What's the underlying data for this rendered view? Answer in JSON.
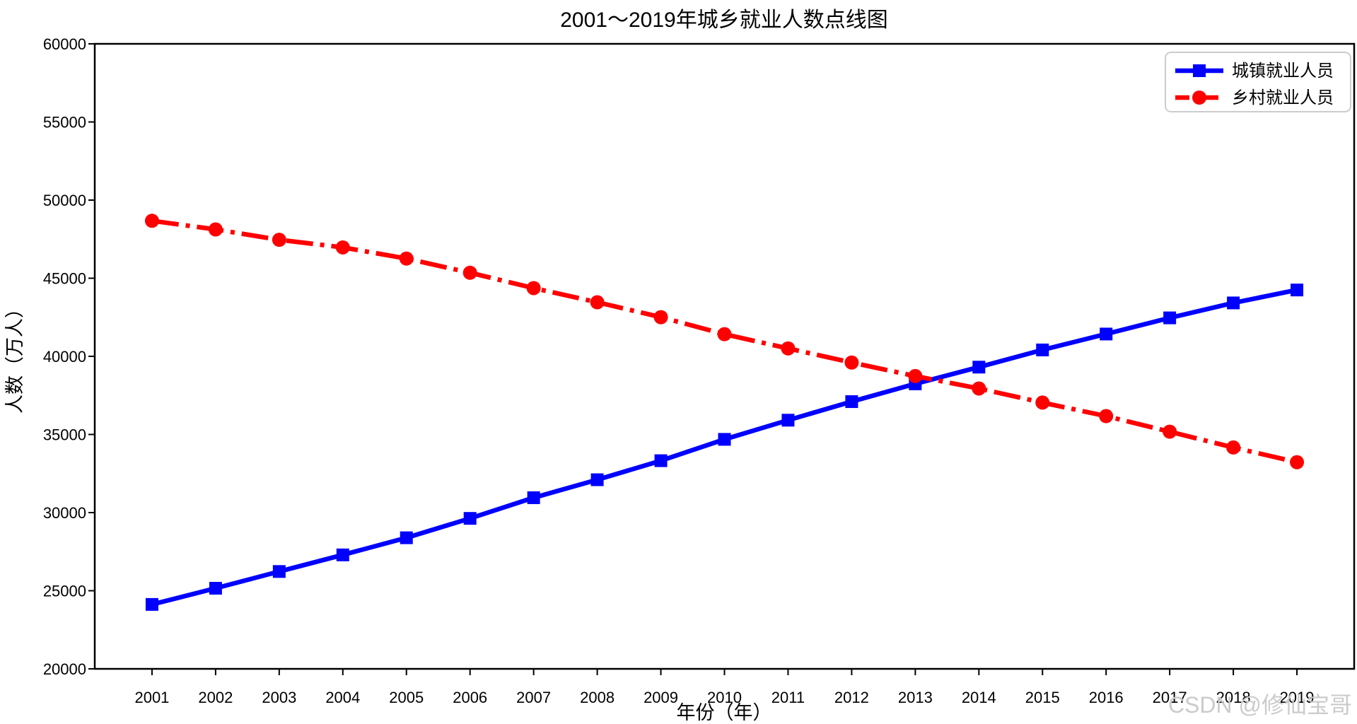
{
  "figure": {
    "title": "2001～2019年城乡就业人数点线图",
    "watermark": "CSDN @修仙宝哥"
  },
  "chart_data": {
    "type": "line",
    "title": "2001～2019年城乡就业人数点线图",
    "xlabel": "年份（年）",
    "ylabel": "人数（万人）",
    "x": [
      2001,
      2002,
      2003,
      2004,
      2005,
      2006,
      2007,
      2008,
      2009,
      2010,
      2011,
      2012,
      2013,
      2014,
      2015,
      2016,
      2017,
      2018,
      2019
    ],
    "xlim": [
      2000.1,
      2019.9
    ],
    "ylim": [
      20000,
      60000
    ],
    "yticks": [
      20000,
      25000,
      30000,
      35000,
      40000,
      45000,
      50000,
      55000,
      60000
    ],
    "grid": false,
    "legend_position": "upper right",
    "series": [
      {
        "name": "城镇就业人员",
        "color": "#0000ff",
        "marker": "square",
        "linestyle": "solid",
        "values": [
          24123,
          25159,
          26230,
          27293,
          28389,
          29630,
          30953,
          32103,
          33322,
          34687,
          35914,
          37102,
          38240,
          39310,
          40410,
          41428,
          42462,
          43419,
          44247
        ]
      },
      {
        "name": "乡村就业人员",
        "color": "#ff0000",
        "marker": "circle",
        "linestyle": "dashdot",
        "values": [
          48674,
          48121,
          47458,
          46971,
          46258,
          45348,
          44368,
          43461,
          42506,
          41418,
          40506,
          39602,
          38737,
          37943,
          37041,
          36175,
          35178,
          34167,
          33224
        ]
      }
    ]
  }
}
